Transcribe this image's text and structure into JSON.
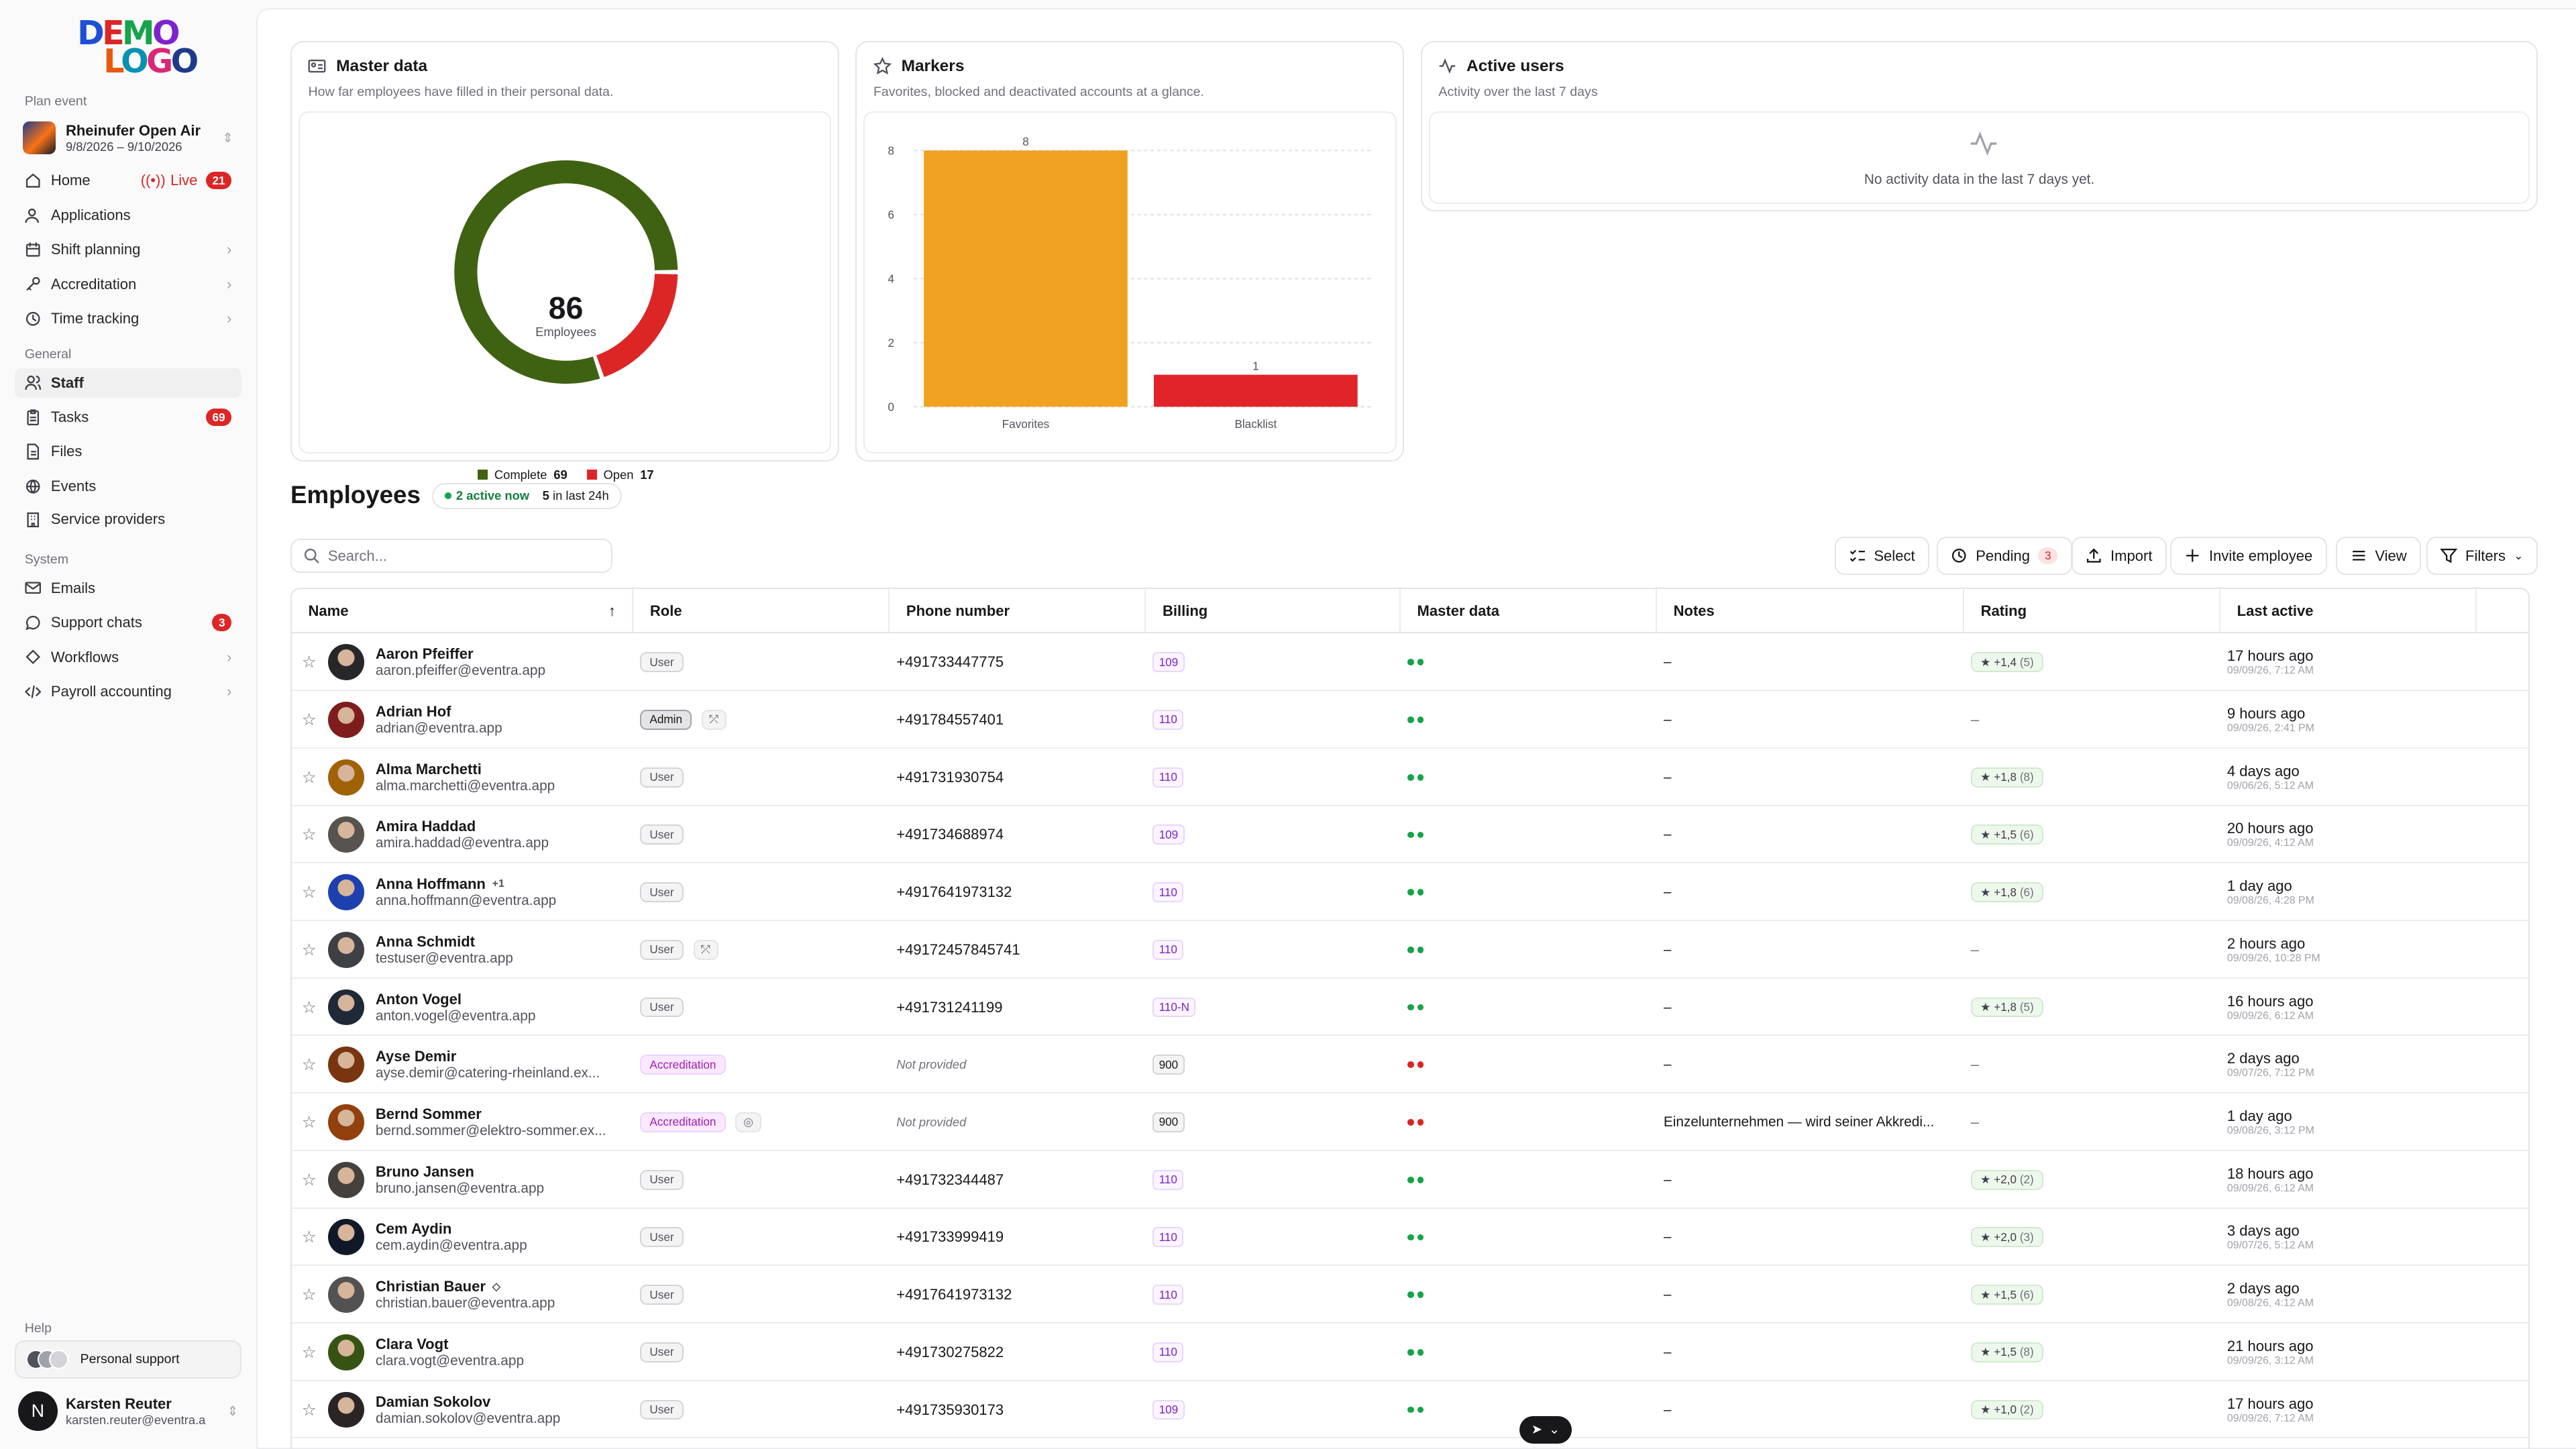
{
  "sidebar": {
    "logo": {
      "line1": "DEMO",
      "line2": "LOGO"
    },
    "plan_event_label": "Plan event",
    "event": {
      "name": "Rheinufer Open Air",
      "dates": "9/8/2026 – 9/10/2026"
    },
    "general_label": "General",
    "system_label": "System",
    "help_label": "Help",
    "items": [
      {
        "label": "Home",
        "icon": "home-icon",
        "live": "Live",
        "badge": "21"
      },
      {
        "label": "Applications",
        "icon": "user-check-icon"
      },
      {
        "label": "Shift planning",
        "icon": "calendar-icon",
        "arrow": "›"
      },
      {
        "label": "Accreditation",
        "icon": "key-icon",
        "arrow": "›"
      },
      {
        "label": "Time tracking",
        "icon": "clock-icon",
        "arrow": "›"
      },
      {
        "label": "Staff",
        "icon": "users-icon"
      },
      {
        "label": "Tasks",
        "icon": "clipboard-icon",
        "badge": "69"
      },
      {
        "label": "Files",
        "icon": "file-icon"
      },
      {
        "label": "Events",
        "icon": "globe-icon"
      },
      {
        "label": "Service providers",
        "icon": "building-icon"
      },
      {
        "label": "Emails",
        "icon": "mail-icon"
      },
      {
        "label": "Support chats",
        "icon": "chat-icon",
        "badge": "3"
      },
      {
        "label": "Workflows",
        "icon": "workflow-icon",
        "arrow": "›"
      },
      {
        "label": "Payroll accounting",
        "icon": "code-icon",
        "arrow": "›"
      }
    ],
    "support": "Personal support",
    "user": {
      "initial": "N",
      "name": "Karsten Reuter",
      "email": "karsten.reuter@eventra.a"
    }
  },
  "cards": {
    "master": {
      "title": "Master data",
      "subtitle": "How far employees have filled in their personal data.",
      "total": "86",
      "total_label": "Employees",
      "complete_label": "Complete",
      "complete": "69",
      "open_label": "Open",
      "open": "17"
    },
    "markers": {
      "title": "Markers",
      "subtitle": "Favorites, blocked and deactivated accounts at a glance."
    },
    "active": {
      "title": "Active users",
      "subtitle": "Activity over the last 7 days",
      "empty": "No activity data in the last 7 days yet."
    }
  },
  "chart_data": {
    "type": "bar",
    "categories": [
      "Favorites",
      "Blacklist"
    ],
    "values": [
      8,
      1
    ],
    "ylim": [
      0,
      8
    ],
    "yticks": [
      0,
      2,
      4,
      6,
      8
    ],
    "colors": [
      "#f1a120",
      "#e0242a"
    ],
    "grid": true
  },
  "employees": {
    "title": "Employees",
    "active_now": "2 active now",
    "last24_count": "5",
    "last24_label": "in last 24h",
    "search_placeholder": "Search...",
    "buttons": {
      "select": "Select",
      "pending": "Pending",
      "pending_count": "3",
      "import": "Import",
      "invite": "Invite employee",
      "view": "View",
      "filters": "Filters"
    },
    "columns": [
      "Name",
      "Role",
      "Phone number",
      "Billing",
      "Master data",
      "Notes",
      "Rating",
      "Last active"
    ],
    "rows": [
      {
        "name": "Aaron Pfeiffer",
        "email": "aaron.pfeiffer@eventra.app",
        "role": "User",
        "phone": "+491733447775",
        "billing": "109",
        "master": "complete",
        "notes": "–",
        "rating": "+1,4",
        "rating_count": "(5)",
        "ago": "17 hours ago",
        "stamp": "09/09/26, 7:12 AM"
      },
      {
        "name": "Adrian Hof",
        "email": "adrian@eventra.app",
        "role": "Admin",
        "extra": "⤱",
        "phone": "+491784557401",
        "billing": "110",
        "master": "complete",
        "notes": "–",
        "rating": "",
        "rating_count": "",
        "ago": "9 hours ago",
        "stamp": "09/09/26, 2:41 PM"
      },
      {
        "name": "Alma Marchetti",
        "email": "alma.marchetti@eventra.app",
        "role": "User",
        "phone": "+491731930754",
        "billing": "110",
        "master": "complete",
        "notes": "–",
        "rating": "+1,8",
        "rating_count": "(8)",
        "ago": "4 days ago",
        "stamp": "09/06/26, 5:12 AM"
      },
      {
        "name": "Amira Haddad",
        "email": "amira.haddad@eventra.app",
        "role": "User",
        "phone": "+491734688974",
        "billing": "109",
        "master": "complete",
        "notes": "–",
        "rating": "+1,5",
        "rating_count": "(6)",
        "ago": "20 hours ago",
        "stamp": "09/09/26, 4:12 AM"
      },
      {
        "name": "Anna Hoffmann",
        "tag": "+1",
        "email": "anna.hoffmann@eventra.app",
        "role": "User",
        "phone": "+4917641973132",
        "billing": "110",
        "master": "complete",
        "notes": "–",
        "rating": "+1,8",
        "rating_count": "(6)",
        "ago": "1 day ago",
        "stamp": "09/08/26, 4:28 PM"
      },
      {
        "name": "Anna Schmidt",
        "email": "testuser@eventra.app",
        "role": "User",
        "extra": "⤱",
        "phone": "+4917245784574​1",
        "billing": "110",
        "master": "complete",
        "notes": "–",
        "rating": "",
        "rating_count": "",
        "ago": "2 hours ago",
        "stamp": "09/09/26, 10:28 PM"
      },
      {
        "name": "Anton Vogel",
        "email": "anton.vogel@eventra.app",
        "role": "User",
        "phone": "+491731241199",
        "billing": "110-N",
        "master": "complete",
        "notes": "–",
        "rating": "+1,8",
        "rating_count": "(5)",
        "ago": "16 hours ago",
        "stamp": "09/09/26, 6:12 AM"
      },
      {
        "name": "Ayse Demir",
        "email": "ayse.demir@catering-rheinland.ex...",
        "role": "Accreditation",
        "phone": "Not provided",
        "billing": "900",
        "master": "open",
        "notes": "–",
        "rating": "",
        "rating_count": "",
        "ago": "2 days ago",
        "stamp": "09/07/26, 7:12 PM"
      },
      {
        "name": "Bernd Sommer",
        "email": "bernd.sommer@elektro-sommer.ex...",
        "role": "Accreditation",
        "extra": "◎",
        "phone": "Not provided",
        "billing": "900",
        "master": "open",
        "notes": "Einzelunternehmen — wird seiner Akkredi...",
        "rating": "",
        "rating_count": "",
        "ago": "1 day ago",
        "stamp": "09/08/26, 3:12 PM"
      },
      {
        "name": "Bruno Jansen",
        "email": "bruno.jansen@eventra.app",
        "role": "User",
        "phone": "+491732344487",
        "billing": "110",
        "master": "complete",
        "notes": "–",
        "rating": "+2,0",
        "rating_count": "(2)",
        "ago": "18 hours ago",
        "stamp": "09/09/26, 6:12 AM"
      },
      {
        "name": "Cem Aydin",
        "email": "cem.aydin@eventra.app",
        "role": "User",
        "phone": "+491733999419",
        "billing": "110",
        "master": "complete",
        "notes": "–",
        "rating": "+2,0",
        "rating_count": "(3)",
        "ago": "3 days ago",
        "stamp": "09/07/26, 5:12 AM"
      },
      {
        "name": "Christian Bauer",
        "tag": "◇",
        "email": "christian.bauer@eventra.app",
        "role": "User",
        "phone": "+4917641973132",
        "billing": "110",
        "master": "complete",
        "notes": "–",
        "rating": "+1,5",
        "rating_count": "(6)",
        "ago": "2 days ago",
        "stamp": "09/08/26, 4:12 AM"
      },
      {
        "name": "Clara Vogt",
        "email": "clara.vogt@eventra.app",
        "role": "User",
        "phone": "+491730275822",
        "billing": "110",
        "master": "complete",
        "notes": "–",
        "rating": "+1,5",
        "rating_count": "(8)",
        "ago": "21 hours ago",
        "stamp": "09/09/26, 3:12 AM"
      },
      {
        "name": "Damian Sokolov",
        "email": "damian.sokolov@eventra.app",
        "role": "User",
        "phone": "+491735930173",
        "billing": "109",
        "master": "complete",
        "notes": "–",
        "rating": "+1,0",
        "rating_count": "(2)",
        "ago": "17 hours ago",
        "stamp": "09/09/26, 7:12 AM"
      }
    ]
  },
  "colors": {
    "complete": "#3f6212",
    "open": "#dc2626",
    "accent_dots_ok": "#16a34a"
  }
}
